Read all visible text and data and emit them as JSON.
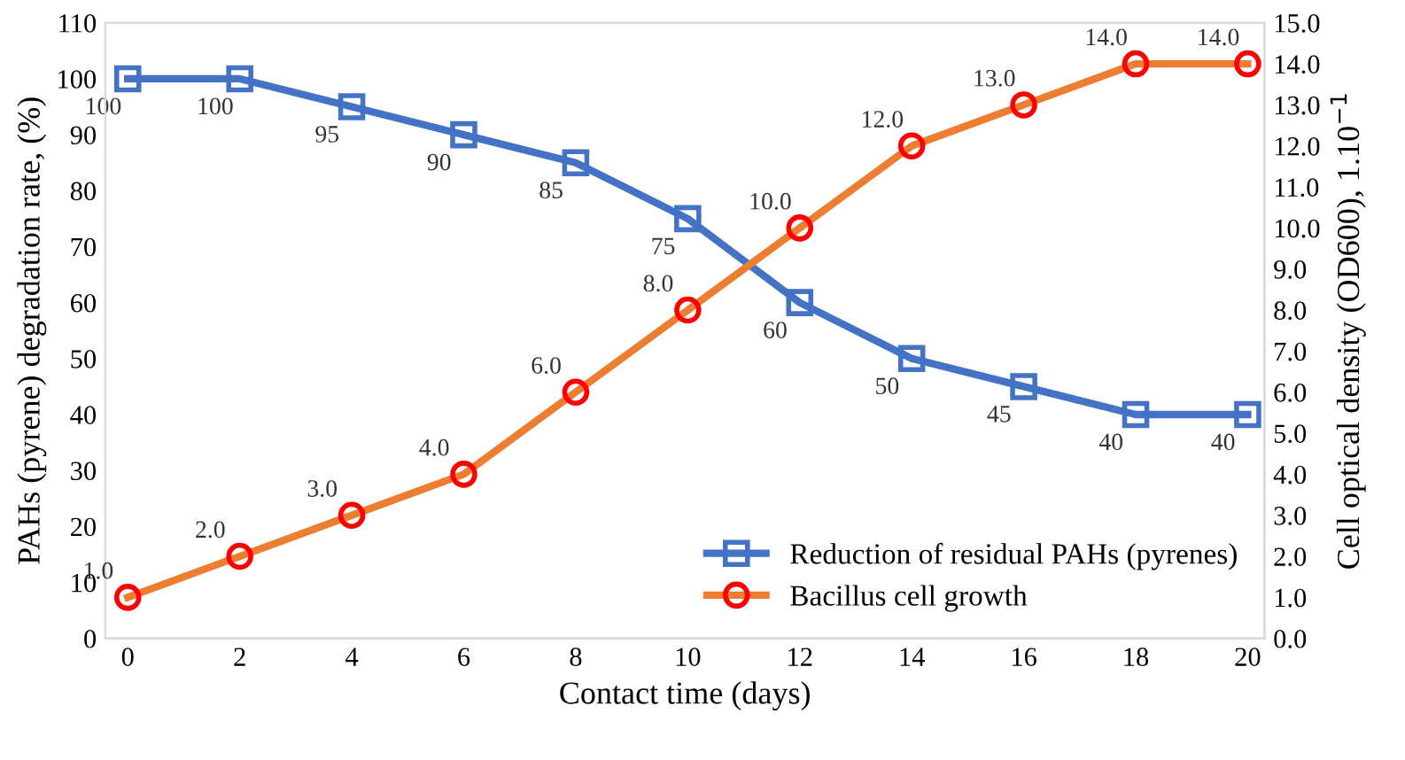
{
  "chart_data": {
    "type": "line",
    "xlabel": "Contact time (days)",
    "ylabel": "PAHs (pyrene) degradation rate, (%)",
    "y2label": "Cell optical density (OD600), 1.10$^{−1}$",
    "x": [
      0,
      2,
      4,
      6,
      8,
      10,
      12,
      14,
      16,
      18,
      20
    ],
    "xlim": [
      -0.4,
      20.3
    ],
    "xticks": [
      0,
      2,
      4,
      6,
      8,
      10,
      12,
      14,
      16,
      18,
      20
    ],
    "ylim": [
      0,
      110
    ],
    "yticks": [
      0,
      10,
      20,
      30,
      40,
      50,
      60,
      70,
      80,
      90,
      100,
      110
    ],
    "y2lim": [
      0,
      15
    ],
    "y2ticks": [
      {
        "value": 0,
        "label": "0.0"
      },
      {
        "value": 1,
        "label": "1.0"
      },
      {
        "value": 2,
        "label": "2.0"
      },
      {
        "value": 3,
        "label": "3.0"
      },
      {
        "value": 4,
        "label": "4.0"
      },
      {
        "value": 5,
        "label": "5.0"
      },
      {
        "value": 6,
        "label": "6.0"
      },
      {
        "value": 7,
        "label": "7.0"
      },
      {
        "value": 8,
        "label": "8.0"
      },
      {
        "value": 9,
        "label": "9.0"
      },
      {
        "value": 10,
        "label": "10.0"
      },
      {
        "value": 11,
        "label": "11.0"
      },
      {
        "value": 12,
        "label": "12.0"
      },
      {
        "value": 13,
        "label": "13.0"
      },
      {
        "value": 14,
        "label": "14.0"
      },
      {
        "value": 15,
        "label": "15.0"
      }
    ],
    "series": [
      {
        "name": "Reduction of residual PAHs (pyrenes)",
        "color": "#4472c4",
        "marker": "square",
        "values": [
          100,
          100,
          95,
          90,
          85,
          75,
          60,
          50,
          45,
          40,
          40
        ],
        "value_labels": [
          "100",
          "100",
          "95",
          "90",
          "85",
          "75",
          "60",
          "50",
          "45",
          "40",
          "40"
        ]
      },
      {
        "name": "Bacillus cell growth",
        "color": "#ed7d31",
        "marker": "circle",
        "axis": "y2",
        "values": [
          1,
          2,
          3,
          4,
          6,
          8,
          10,
          12,
          13,
          14,
          14
        ],
        "value_labels": [
          "1.0",
          "2.0",
          "3.0",
          "4.0",
          "6.0",
          "8.0",
          "10.0",
          "12.0",
          "13.0",
          "14.0",
          "14.0"
        ]
      }
    ],
    "legend": "bottom right",
    "grid": false,
    "line_style": "solid"
  }
}
